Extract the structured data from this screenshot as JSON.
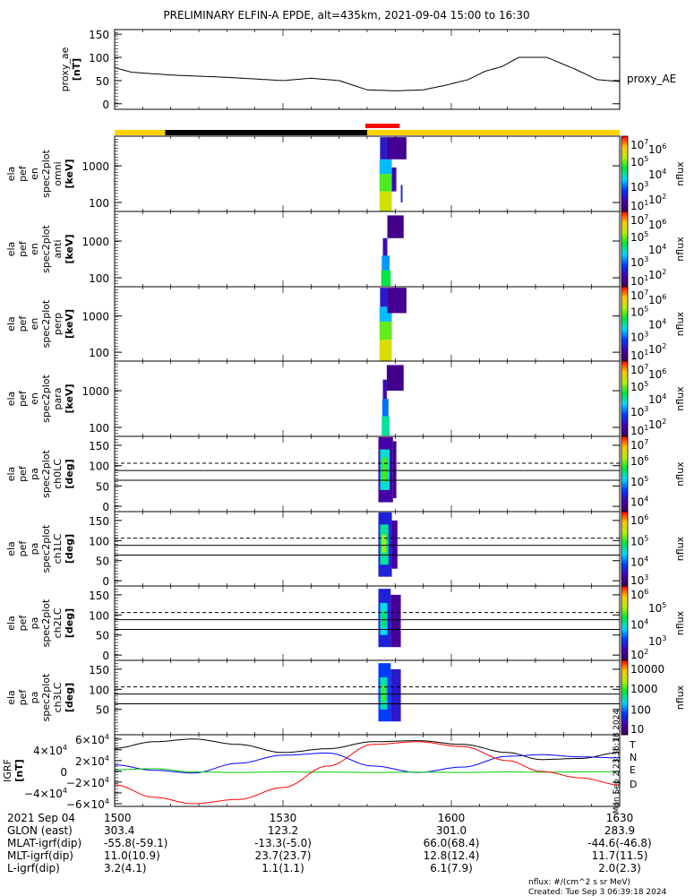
{
  "title": "PRELIMINARY ELFIN-A EPDE, alt=435km, 2021-09-04 15:00 to 16:30",
  "colors": {
    "yellow": "#ffd200",
    "black": "#000000",
    "red": "#ff0000",
    "T": "#000000",
    "N": "#0000ff",
    "E": "#00cc00",
    "D": "#ff0000"
  },
  "chart_data": [
    {
      "type": "line",
      "id": "proxy_ae",
      "ylabel_lines": [
        "proxy_ae",
        "[nT]"
      ],
      "legend": "proxy_AE",
      "ylim": [
        -12,
        160
      ],
      "yticks": [
        0,
        50,
        100,
        150
      ],
      "x": [
        0,
        3,
        10,
        20,
        30,
        35,
        40,
        45,
        50,
        55,
        59,
        63,
        66,
        69,
        72,
        77,
        82,
        86,
        90
      ],
      "y": [
        78,
        68,
        62,
        57,
        50,
        55,
        50,
        30,
        28,
        30,
        40,
        52,
        70,
        80,
        100,
        100,
        75,
        52,
        48
      ]
    },
    {
      "type": "heatmap",
      "id": "omni",
      "ylabel_lines": [
        "ela",
        "pef",
        "en",
        "spec2plot",
        "omni",
        "[keV]"
      ],
      "yscale": "log",
      "ylim": [
        57,
        6400
      ],
      "yticks": [
        100,
        1000
      ],
      "colorbar": {
        "label": "nflux",
        "ticks": [
          {
            "b": "10",
            "e": "7",
            "v": 7
          },
          {
            "b": "10",
            "e": "6",
            "v": 6
          },
          {
            "b": "10",
            "e": "5",
            "v": 5
          },
          {
            "b": "10",
            "e": "4",
            "v": 4
          },
          {
            "b": "10",
            "e": "3",
            "v": 3
          },
          {
            "b": "10",
            "e": "2",
            "v": 2
          },
          {
            "b": "10",
            "e": "1",
            "v": 1
          }
        ],
        "range": [
          1,
          7
        ]
      },
      "blocks": [
        [
          47.2,
          49.4,
          57,
          200,
          5.6
        ],
        [
          47.2,
          49.4,
          200,
          600,
          4.8
        ],
        [
          47.2,
          49.4,
          600,
          1500,
          3.4
        ],
        [
          47.3,
          48.5,
          1500,
          6000,
          2.2
        ],
        [
          48.5,
          52,
          1500,
          6000,
          1.6
        ],
        [
          49.4,
          50.2,
          200,
          900,
          2.0
        ],
        [
          51,
          51.3,
          100,
          300,
          2.3
        ]
      ]
    },
    {
      "type": "heatmap",
      "id": "anti",
      "ylabel_lines": [
        "ela",
        "pef",
        "en",
        "spec2plot",
        "anti",
        "[keV]"
      ],
      "yscale": "log",
      "ylim": [
        57,
        6400
      ],
      "yticks": [
        100,
        1000
      ],
      "colorbar": {
        "label": "nflux",
        "ticks": [
          {
            "b": "10",
            "e": "7",
            "v": 7
          },
          {
            "b": "10",
            "e": "6",
            "v": 6
          },
          {
            "b": "10",
            "e": "5",
            "v": 5
          },
          {
            "b": "10",
            "e": "4",
            "v": 4
          },
          {
            "b": "10",
            "e": "3",
            "v": 3
          },
          {
            "b": "10",
            "e": "2",
            "v": 2
          },
          {
            "b": "10",
            "e": "1",
            "v": 1
          }
        ],
        "range": [
          1,
          7
        ]
      },
      "blocks": [
        [
          47.5,
          49.2,
          60,
          160,
          4.4
        ],
        [
          47.6,
          49.0,
          160,
          400,
          3.2
        ],
        [
          47.8,
          48.6,
          400,
          1200,
          2.0
        ],
        [
          48.6,
          51.5,
          1200,
          5000,
          1.5
        ]
      ]
    },
    {
      "type": "heatmap",
      "id": "perp",
      "ylabel_lines": [
        "ela",
        "pef",
        "en",
        "spec2plot",
        "perp",
        "[keV]"
      ],
      "yscale": "log",
      "ylim": [
        57,
        6400
      ],
      "yticks": [
        100,
        1000
      ],
      "colorbar": {
        "label": "nflux",
        "ticks": [
          {
            "b": "10",
            "e": "7",
            "v": 7
          },
          {
            "b": "10",
            "e": "6",
            "v": 6
          },
          {
            "b": "10",
            "e": "5",
            "v": 5
          },
          {
            "b": "10",
            "e": "4",
            "v": 4
          },
          {
            "b": "10",
            "e": "3",
            "v": 3
          },
          {
            "b": "10",
            "e": "2",
            "v": 2
          },
          {
            "b": "10",
            "e": "1",
            "v": 1
          }
        ],
        "range": [
          1,
          7
        ]
      },
      "blocks": [
        [
          47.2,
          49.4,
          57,
          220,
          5.7
        ],
        [
          47.2,
          49.4,
          220,
          700,
          4.9
        ],
        [
          47.2,
          49.4,
          700,
          1800,
          3.4
        ],
        [
          47.3,
          48.6,
          1800,
          6000,
          2.2
        ],
        [
          48.6,
          52,
          1200,
          6000,
          1.6
        ]
      ]
    },
    {
      "type": "heatmap",
      "id": "para",
      "ylabel_lines": [
        "ela",
        "pef",
        "en",
        "spec2plot",
        "para",
        "[keV]"
      ],
      "yscale": "log",
      "ylim": [
        57,
        6400
      ],
      "yticks": [
        100,
        1000
      ],
      "colorbar": {
        "label": "nflux",
        "ticks": [
          {
            "b": "10",
            "e": "7",
            "v": 7
          },
          {
            "b": "10",
            "e": "6",
            "v": 6
          },
          {
            "b": "10",
            "e": "5",
            "v": 5
          },
          {
            "b": "10",
            "e": "4",
            "v": 4
          },
          {
            "b": "10",
            "e": "3",
            "v": 3
          },
          {
            "b": "10",
            "e": "2",
            "v": 2
          },
          {
            "b": "10",
            "e": "1",
            "v": 1
          }
        ],
        "range": [
          1,
          7
        ]
      },
      "blocks": [
        [
          47.6,
          49.0,
          60,
          200,
          4.0
        ],
        [
          47.7,
          48.8,
          200,
          600,
          3.0
        ],
        [
          47.8,
          48.5,
          600,
          2000,
          2.0
        ],
        [
          48.5,
          51.5,
          1000,
          5000,
          1.5
        ]
      ]
    },
    {
      "type": "heatmap",
      "id": "ch0LC",
      "ylabel_lines": [
        "ela",
        "pef",
        "pa",
        "spec2plot",
        "ch0LC",
        "[deg]"
      ],
      "yscale": "linear",
      "ylim": [
        -13,
        172
      ],
      "yticks": [
        0,
        50,
        100,
        150
      ],
      "hlines": {
        "dashed": [
          106
        ],
        "solid": [
          88,
          64
        ]
      },
      "colorbar": {
        "label": "nflux",
        "ticks": [
          {
            "b": "10",
            "e": "7",
            "v": 7
          },
          {
            "b": "10",
            "e": "6",
            "v": 6
          },
          {
            "b": "10",
            "e": "5",
            "v": 5
          },
          {
            "b": "10",
            "e": "4",
            "v": 4
          }
        ],
        "range": [
          3.5,
          7.2
        ]
      },
      "blocks": [
        [
          47.0,
          49.6,
          10,
          170,
          4.0
        ],
        [
          47.3,
          49.0,
          40,
          140,
          5.2
        ],
        [
          47.6,
          48.6,
          60,
          120,
          5.8
        ],
        [
          49.6,
          50.2,
          20,
          160,
          3.8
        ]
      ]
    },
    {
      "type": "heatmap",
      "id": "ch1LC",
      "ylabel_lines": [
        "ela",
        "pef",
        "pa",
        "spec2plot",
        "ch1LC",
        "[deg]"
      ],
      "yscale": "linear",
      "ylim": [
        -13,
        172
      ],
      "yticks": [
        0,
        50,
        100,
        150
      ],
      "hlines": {
        "dashed": [
          106
        ],
        "solid": [
          88,
          64
        ]
      },
      "colorbar": {
        "label": "nflux",
        "ticks": [
          {
            "b": "10",
            "e": "6",
            "v": 6
          },
          {
            "b": "10",
            "e": "5",
            "v": 5
          },
          {
            "b": "10",
            "e": "4",
            "v": 4
          },
          {
            "b": "10",
            "e": "3",
            "v": 3
          }
        ],
        "range": [
          2.8,
          6.4
        ]
      },
      "blocks": [
        [
          47.0,
          49.4,
          10,
          170,
          3.6
        ],
        [
          47.3,
          48.8,
          40,
          140,
          4.6
        ],
        [
          47.6,
          48.4,
          70,
          115,
          5.3
        ],
        [
          49.4,
          50.4,
          30,
          150,
          3.2
        ]
      ]
    },
    {
      "type": "heatmap",
      "id": "ch2LC",
      "ylabel_lines": [
        "ela",
        "pef",
        "pa",
        "spec2plot",
        "ch2LC",
        "[deg]"
      ],
      "yscale": "linear",
      "ylim": [
        -13,
        172
      ],
      "yticks": [
        0,
        50,
        100,
        150
      ],
      "hlines": {
        "dashed": [
          106
        ],
        "solid": [
          88,
          64
        ]
      },
      "colorbar": {
        "label": "nflux",
        "ticks": [
          {
            "b": "10",
            "e": "6",
            "v": 6
          },
          {
            "b": "10",
            "e": "5",
            "v": 5
          },
          {
            "b": "10",
            "e": "4",
            "v": 4
          },
          {
            "b": "10",
            "e": "3",
            "v": 3
          },
          {
            "b": "10",
            "e": "2",
            "v": 2
          }
        ],
        "range": [
          1.8,
          6.3
        ]
      },
      "blocks": [
        [
          47.0,
          49.2,
          20,
          165,
          2.8
        ],
        [
          47.3,
          48.6,
          50,
          130,
          3.8
        ],
        [
          47.6,
          48.3,
          70,
          110,
          4.3
        ],
        [
          49.2,
          51,
          20,
          150,
          2.3
        ]
      ]
    },
    {
      "type": "heatmap",
      "id": "ch3LC",
      "ylabel_lines": [
        "ela",
        "pef",
        "pa",
        "spec2plot",
        "ch3LC",
        "[deg]"
      ],
      "yscale": "linear",
      "ylim": [
        -13,
        172
      ],
      "yticks": [
        50,
        100,
        150
      ],
      "hlines": {
        "dashed": [
          106
        ],
        "solid": [
          88,
          64
        ]
      },
      "colorbar": {
        "label": "nflux",
        "ticks": [
          {
            "b": "10000",
            "e": "",
            "v": 4
          },
          {
            "b": "1000",
            "e": "",
            "v": 3
          },
          {
            "b": "100",
            "e": "",
            "v": 2
          },
          {
            "b": "10",
            "e": "",
            "v": 1
          }
        ],
        "range": [
          0.8,
          4.3
        ]
      },
      "blocks": [
        [
          47.0,
          49.2,
          20,
          165,
          1.8
        ],
        [
          47.3,
          48.6,
          50,
          130,
          2.5
        ],
        [
          47.6,
          48.3,
          70,
          110,
          3.0
        ],
        [
          49.2,
          51,
          20,
          150,
          1.5
        ]
      ]
    },
    {
      "type": "line",
      "id": "igrf",
      "ylabel_lines": [
        "IGRF",
        "[nT]"
      ],
      "ylim": [
        -65000,
        68000
      ],
      "yticks": [
        {
          "v": 60000,
          "b": "6×10",
          "e": "4"
        },
        {
          "v": 40000,
          "b": "4×10",
          "e": "4"
        },
        {
          "v": 20000,
          "b": "2×10",
          "e": "4"
        },
        {
          "v": 0,
          "b": "0",
          "e": ""
        },
        {
          "v": -20000,
          "b": "−2×10",
          "e": "4"
        },
        {
          "v": -40000,
          "b": "−4×10",
          "e": "4"
        },
        {
          "v": -60000,
          "b": "−6×10",
          "e": "4"
        }
      ],
      "stamp": "Mon Sep  2 23:36:18 2024",
      "x": [
        0,
        7,
        14,
        22,
        30,
        38,
        46,
        54,
        62,
        70,
        76,
        83,
        90
      ],
      "series": [
        {
          "name": "T",
          "y": [
            43000,
            55000,
            60000,
            50000,
            35000,
            42000,
            55000,
            57000,
            50000,
            35000,
            22000,
            24000,
            35000
          ]
        },
        {
          "name": "N",
          "y": [
            12000,
            2000,
            -3000,
            15000,
            30000,
            34000,
            10000,
            -2000,
            8000,
            28000,
            31000,
            27000,
            25000
          ]
        },
        {
          "name": "E",
          "y": [
            3000,
            5000,
            -1000,
            -2000,
            -1000,
            -1500,
            -2000,
            -1500,
            -2000,
            -1000,
            -1500,
            -1000,
            -500
          ]
        },
        {
          "name": "D",
          "y": [
            -25000,
            -48000,
            -60000,
            -52000,
            -30000,
            10000,
            50000,
            55000,
            46000,
            20000,
            0,
            -12000,
            -25000
          ]
        }
      ]
    }
  ],
  "time_axis": {
    "xlim_min": [
      0,
      90
    ],
    "ticks": [
      {
        "min": 0,
        "label": "1500"
      },
      {
        "min": 30,
        "label": "1530"
      },
      {
        "min": 60,
        "label": "1600"
      },
      {
        "min": 90,
        "label": "1630"
      }
    ]
  },
  "status_bar": {
    "segments": [
      {
        "from": 0,
        "to": 9,
        "color": "yellow"
      },
      {
        "from": 9,
        "to": 45,
        "color": "black"
      },
      {
        "from": 45,
        "to": 90,
        "color": "yellow"
      }
    ],
    "marker": {
      "from": 44.7,
      "to": 50.8,
      "color": "red"
    }
  },
  "ephemeris": {
    "rows": [
      {
        "label": "2021 Sep 04",
        "values": [
          "1500",
          "1530",
          "1600",
          "1630"
        ]
      },
      {
        "label": "GLON (east)",
        "values": [
          "303.4",
          "123.2",
          "301.0",
          "283.9"
        ]
      },
      {
        "label": "MLAT-igrf(dip)",
        "values": [
          "-55.8(-59.1)",
          "-13.3(-5.0)",
          "66.0(68.4)",
          "-44.6(-46.8)"
        ]
      },
      {
        "label": "MLT-igrf(dip)",
        "values": [
          "11.0(10.9)",
          "23.7(23.7)",
          "12.8(12.4)",
          "11.7(11.5)"
        ]
      },
      {
        "label": "L-igrf(dip)",
        "values": [
          "3.2(4.1)",
          "1.1(1.1)",
          "6.1(7.9)",
          "2.0(2.3)"
        ]
      }
    ]
  },
  "footer": {
    "units": "nflux: #/(cm^2 s sr MeV)",
    "created": "Created: Tue Sep  3 06:39:18 2024"
  }
}
